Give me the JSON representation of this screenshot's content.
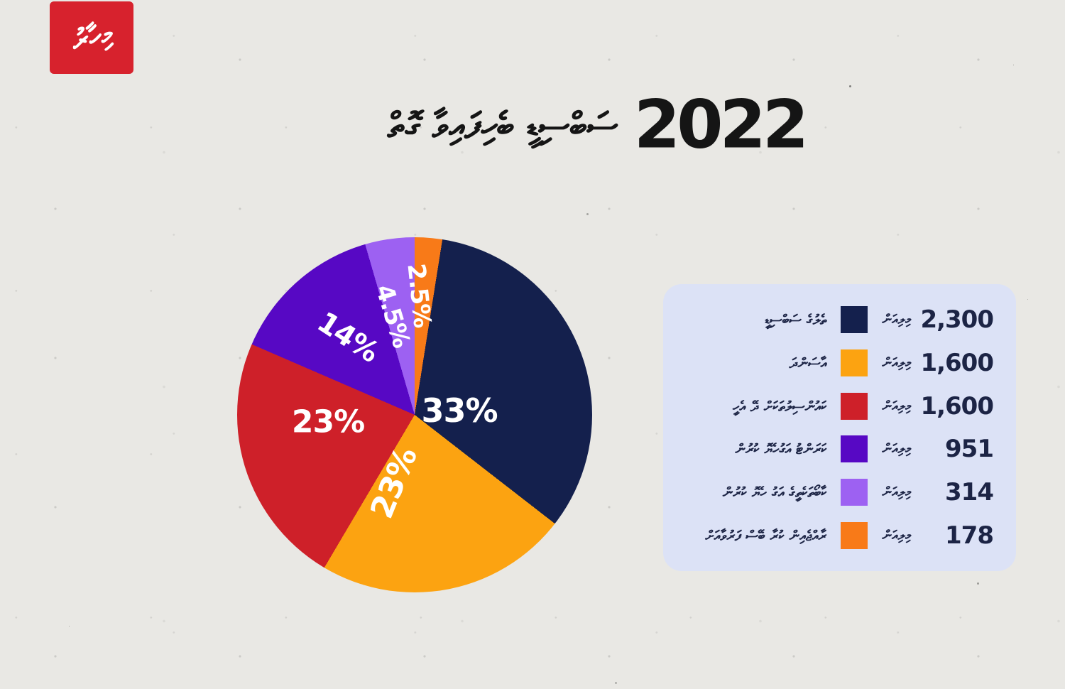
{
  "brand": {
    "logo_text": "މިހާރު",
    "logo_color": "#d7222d"
  },
  "title": {
    "year": "2022",
    "text_dv": "ސަބްސިޑީ ބެހިފައިވާ ގޮތް"
  },
  "chart_data": {
    "type": "pie",
    "title": "2022 ސަބްސިޑީ ބެހިފައިވާ ގޮތް",
    "unit_dv": "މިލިއަން",
    "legend_position": "right",
    "pie_start_angle_deg": 9,
    "slices": [
      {
        "label_dv": "ތެލުގެ ސަބްސިޑީ",
        "value": 2300,
        "value_label": "2,300",
        "percent": 33,
        "percent_label": "33%",
        "color": "#14204d"
      },
      {
        "label_dv": "އާސަންދަ",
        "value": 1600,
        "value_label": "1,600",
        "percent": 23,
        "percent_label": "23%",
        "color": "#fca311"
      },
      {
        "label_dv": "ކައުންސިލުތަކަށް ދޭ އެހީ",
        "value": 1600,
        "value_label": "1,600",
        "percent": 23,
        "percent_label": "23%",
        "color": "#ce2029"
      },
      {
        "label_dv": "ކަރަންޓު އަގުހެޔޮ ކުރުން",
        "value": 951,
        "value_label": "951",
        "percent": 14,
        "percent_label": "14%",
        "color": "#5708c4"
      },
      {
        "label_dv": "ކާބޯތަކެތީގެ އަގު ހެޔޮ ކުރުން",
        "value": 314,
        "value_label": "314",
        "percent": 4.5,
        "percent_label": "4.5%",
        "color": "#9d61f2"
      },
      {
        "label_dv": "ރާއްޖެއިން ކުރާ ބޭސް ފަރުވާއަށް",
        "value": 178,
        "value_label": "178",
        "percent": 2.5,
        "percent_label": "2.5%",
        "color": "#f87a18"
      }
    ]
  }
}
